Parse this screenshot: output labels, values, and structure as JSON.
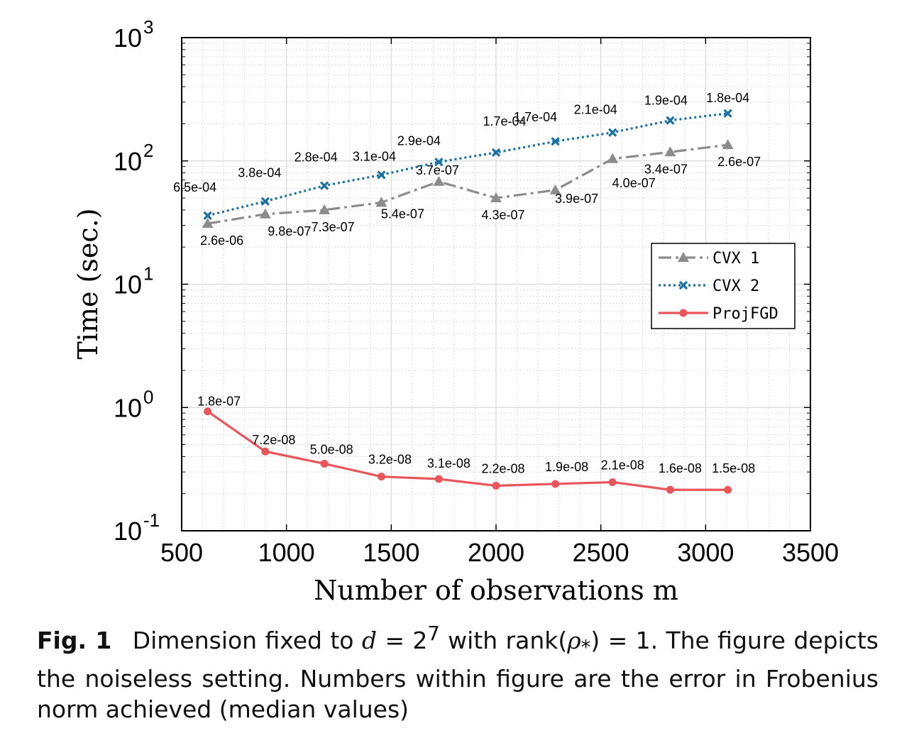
{
  "chart_data": {
    "type": "line",
    "xlabel": "Number of observations m",
    "ylabel": "Time (sec.)",
    "xlim": [
      500,
      3500
    ],
    "ylim": [
      0.1,
      1000
    ],
    "yscale": "log",
    "grid": true,
    "legend_position": "right",
    "xticks": [
      "500",
      "1000",
      "1500",
      "2000",
      "2500",
      "3000",
      "3500"
    ],
    "yticks": [
      {
        "base": "10",
        "exp": "3",
        "value": 1000
      },
      {
        "base": "10",
        "exp": "2",
        "value": 100
      },
      {
        "base": "10",
        "exp": "1",
        "value": 10
      },
      {
        "base": "10",
        "exp": "0",
        "value": 1
      },
      {
        "base": "10",
        "exp": "-1",
        "value": 0.1
      }
    ],
    "x": [
      624,
      899,
      1181,
      1453,
      1727,
      2000,
      2283,
      2556,
      2831,
      3106
    ],
    "series": [
      {
        "name": "CVX 1",
        "color": "#8c8c8c",
        "style": "dashdot",
        "marker": "triangle",
        "values": [
          31,
          37,
          40,
          46,
          68,
          50,
          58,
          104,
          118,
          135
        ],
        "labels": [
          "2.6e-06",
          "9.8e-07",
          "7.3e-07",
          "5.4e-07",
          "3.7e-07",
          "4.3e-07",
          "3.9e-07",
          "4.0e-07",
          "3.4e-07",
          "2.6e-07"
        ]
      },
      {
        "name": "CVX 2",
        "color": "#1a6fa3",
        "style": "dotted",
        "marker": "x",
        "values": [
          36,
          47,
          63,
          77,
          98,
          117,
          144,
          170,
          213,
          243
        ],
        "labels": [
          "6.5e-04",
          "3.8e-04",
          "2.8e-04",
          "3.1e-04",
          "2.9e-04",
          "1.7e-04",
          "1.7e-04",
          "2.1e-04",
          "1.9e-04",
          "1.8e-04"
        ]
      },
      {
        "name": "ProjFGD",
        "color": "#e8555b",
        "style": "solid",
        "marker": "circle",
        "values": [
          0.93,
          0.44,
          0.35,
          0.275,
          0.263,
          0.232,
          0.24,
          0.248,
          0.215,
          0.215
        ],
        "labels": [
          "1.8e-07",
          "7.2e-08",
          "5.0e-08",
          "3.2e-08",
          "3.1e-08",
          "2.2e-08",
          "1.9e-08",
          "2.1e-08",
          "1.6e-08",
          "1.5e-08"
        ]
      }
    ]
  },
  "caption": {
    "label": "Fig. 1",
    "text_before_math": "Dimension fixed to",
    "math1_var": "d",
    "math1_eq": " = 2",
    "math1_sup": "7",
    "text_mid": " with rank(",
    "math2": "ρ",
    "math2_sub": "*",
    "text_after": ") = 1. The figure depicts the noiseless setting. Numbers within figure are the error in Frobenius norm achieved (median values)"
  }
}
